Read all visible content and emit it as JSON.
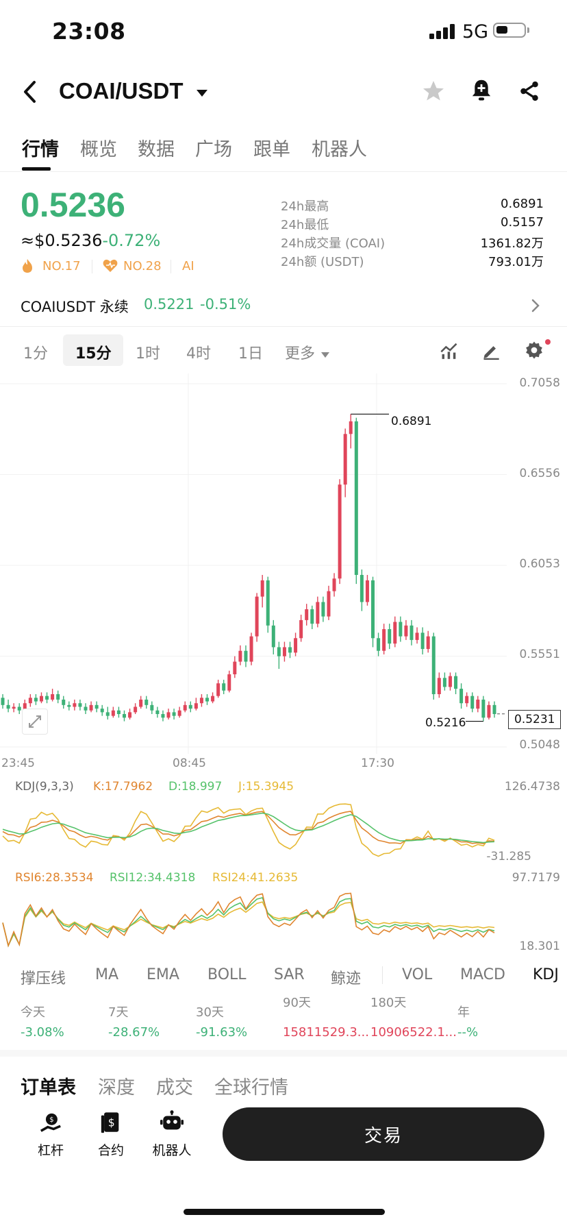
{
  "status_bar": {
    "time": "23:08",
    "network": "5G"
  },
  "header": {
    "pair": "COAI/USDT"
  },
  "tabs": [
    "行情",
    "概览",
    "数据",
    "广场",
    "跟单",
    "机器人"
  ],
  "price": {
    "last": "0.5236",
    "usd": "≈$0.5236",
    "change": "-0.72%",
    "rank1": "NO.17",
    "rank2": "NO.28",
    "tag": "AI"
  },
  "stats": [
    {
      "label": "24h最高",
      "value": "0.6891"
    },
    {
      "label": "24h最低",
      "value": "0.5157"
    },
    {
      "label": "24h成交量 (COAI)",
      "value": "1361.82万"
    },
    {
      "label": "24h额 (USDT)",
      "value": "793.01万"
    }
  ],
  "perpetual": {
    "name": "COAIUSDT 永续",
    "price": "0.5221",
    "change": "-0.51%"
  },
  "timeframes": [
    "1分",
    "15分",
    "1时",
    "4时",
    "1日",
    "更多"
  ],
  "chart_data": {
    "type": "candlestick",
    "y_axis": [
      "0.7058",
      "0.6556",
      "0.6053",
      "0.5551",
      "0.5048"
    ],
    "x_axis": [
      "23:45",
      "08:45",
      "17:30"
    ],
    "high_label": "0.6891",
    "low_label": "0.5216",
    "current_label": "0.5231",
    "ylim": [
      0.5048,
      0.7058
    ],
    "candles": [
      [
        0.532,
        0.528,
        0.534,
        0.526
      ],
      [
        0.528,
        0.526,
        0.531,
        0.524
      ],
      [
        0.526,
        0.527,
        0.529,
        0.524
      ],
      [
        0.527,
        0.525,
        0.529,
        0.523
      ],
      [
        0.525,
        0.529,
        0.531,
        0.524
      ],
      [
        0.529,
        0.532,
        0.534,
        0.527
      ],
      [
        0.532,
        0.53,
        0.534,
        0.528
      ],
      [
        0.53,
        0.533,
        0.535,
        0.529
      ],
      [
        0.533,
        0.531,
        0.535,
        0.529
      ],
      [
        0.531,
        0.534,
        0.537,
        0.53
      ],
      [
        0.534,
        0.531,
        0.536,
        0.529
      ],
      [
        0.531,
        0.528,
        0.533,
        0.526
      ],
      [
        0.528,
        0.527,
        0.53,
        0.525
      ],
      [
        0.527,
        0.529,
        0.531,
        0.525
      ],
      [
        0.529,
        0.527,
        0.531,
        0.525
      ],
      [
        0.527,
        0.525,
        0.529,
        0.523
      ],
      [
        0.525,
        0.528,
        0.53,
        0.524
      ],
      [
        0.528,
        0.526,
        0.53,
        0.524
      ],
      [
        0.526,
        0.524,
        0.528,
        0.522
      ],
      [
        0.524,
        0.522,
        0.527,
        0.52
      ],
      [
        0.522,
        0.525,
        0.527,
        0.521
      ],
      [
        0.525,
        0.523,
        0.527,
        0.521
      ],
      [
        0.523,
        0.521,
        0.525,
        0.519
      ],
      [
        0.521,
        0.524,
        0.526,
        0.52
      ],
      [
        0.524,
        0.527,
        0.529,
        0.523
      ],
      [
        0.527,
        0.531,
        0.533,
        0.526
      ],
      [
        0.531,
        0.528,
        0.533,
        0.526
      ],
      [
        0.528,
        0.525,
        0.53,
        0.523
      ],
      [
        0.525,
        0.523,
        0.527,
        0.521
      ],
      [
        0.523,
        0.521,
        0.525,
        0.519
      ],
      [
        0.521,
        0.524,
        0.526,
        0.52
      ],
      [
        0.524,
        0.522,
        0.526,
        0.52
      ],
      [
        0.522,
        0.525,
        0.527,
        0.521
      ],
      [
        0.525,
        0.528,
        0.53,
        0.524
      ],
      [
        0.528,
        0.526,
        0.53,
        0.524
      ],
      [
        0.526,
        0.529,
        0.532,
        0.525
      ],
      [
        0.529,
        0.532,
        0.534,
        0.527
      ],
      [
        0.532,
        0.53,
        0.534,
        0.528
      ],
      [
        0.53,
        0.533,
        0.535,
        0.529
      ],
      [
        0.533,
        0.54,
        0.542,
        0.532
      ],
      [
        0.54,
        0.536,
        0.542,
        0.534
      ],
      [
        0.536,
        0.545,
        0.547,
        0.535
      ],
      [
        0.545,
        0.552,
        0.555,
        0.543
      ],
      [
        0.552,
        0.558,
        0.561,
        0.55
      ],
      [
        0.558,
        0.552,
        0.561,
        0.549
      ],
      [
        0.552,
        0.566,
        0.568,
        0.55
      ],
      [
        0.566,
        0.588,
        0.59,
        0.563
      ],
      [
        0.588,
        0.597,
        0.6,
        0.582
      ],
      [
        0.597,
        0.572,
        0.599,
        0.568
      ],
      [
        0.572,
        0.56,
        0.575,
        0.556
      ],
      [
        0.56,
        0.555,
        0.563,
        0.548
      ],
      [
        0.555,
        0.56,
        0.563,
        0.552
      ],
      [
        0.56,
        0.557,
        0.563,
        0.554
      ],
      [
        0.557,
        0.565,
        0.568,
        0.555
      ],
      [
        0.565,
        0.575,
        0.578,
        0.563
      ],
      [
        0.575,
        0.581,
        0.584,
        0.572
      ],
      [
        0.581,
        0.573,
        0.583,
        0.57
      ],
      [
        0.573,
        0.585,
        0.588,
        0.571
      ],
      [
        0.585,
        0.577,
        0.588,
        0.574
      ],
      [
        0.577,
        0.591,
        0.594,
        0.575
      ],
      [
        0.591,
        0.598,
        0.601,
        0.588
      ],
      [
        0.598,
        0.65,
        0.653,
        0.595
      ],
      [
        0.65,
        0.678,
        0.681,
        0.643
      ],
      [
        0.678,
        0.685,
        0.689,
        0.67
      ],
      [
        0.685,
        0.6,
        0.687,
        0.595
      ],
      [
        0.6,
        0.585,
        0.603,
        0.58
      ],
      [
        0.585,
        0.597,
        0.6,
        0.583
      ],
      [
        0.597,
        0.565,
        0.599,
        0.56
      ],
      [
        0.565,
        0.558,
        0.568,
        0.555
      ],
      [
        0.558,
        0.57,
        0.573,
        0.556
      ],
      [
        0.57,
        0.562,
        0.573,
        0.559
      ],
      [
        0.562,
        0.574,
        0.577,
        0.56
      ],
      [
        0.574,
        0.566,
        0.577,
        0.563
      ],
      [
        0.566,
        0.572,
        0.575,
        0.564
      ],
      [
        0.572,
        0.564,
        0.575,
        0.561
      ],
      [
        0.564,
        0.568,
        0.571,
        0.562
      ],
      [
        0.568,
        0.559,
        0.571,
        0.556
      ],
      [
        0.559,
        0.566,
        0.569,
        0.557
      ],
      [
        0.566,
        0.534,
        0.568,
        0.531
      ],
      [
        0.534,
        0.543,
        0.546,
        0.532
      ],
      [
        0.543,
        0.538,
        0.546,
        0.536
      ],
      [
        0.538,
        0.544,
        0.546,
        0.536
      ],
      [
        0.544,
        0.537,
        0.546,
        0.534
      ],
      [
        0.537,
        0.529,
        0.54,
        0.526
      ],
      [
        0.529,
        0.533,
        0.535,
        0.527
      ],
      [
        0.533,
        0.526,
        0.535,
        0.524
      ],
      [
        0.526,
        0.531,
        0.533,
        0.524
      ],
      [
        0.531,
        0.521,
        0.533,
        0.519
      ],
      [
        0.521,
        0.528,
        0.53,
        0.52
      ],
      [
        0.528,
        0.523,
        0.53,
        0.521
      ]
    ]
  },
  "kdj": {
    "title": "KDJ(9,3,3)",
    "k": "K:17.7962",
    "d": "D:18.997",
    "j": "J:15.3945",
    "max": "126.4738",
    "min": "-31.285"
  },
  "rsi": {
    "r6": "RSI6:28.3534",
    "r12": "RSI12:34.4318",
    "r24": "RSI24:41.2635",
    "max": "97.7179",
    "min": "18.301"
  },
  "indicators": [
    "撑压线",
    "MA",
    "EMA",
    "BOLL",
    "SAR",
    "鲸迹",
    "VOL",
    "MACD",
    "KDJ"
  ],
  "performance": [
    {
      "label": "今天",
      "value": "-3.08%",
      "color": "green"
    },
    {
      "label": "7天",
      "value": "-28.67%",
      "color": "green"
    },
    {
      "label": "30天",
      "value": "-91.63%",
      "color": "green"
    },
    {
      "label": "90天",
      "value": "15811529.3...",
      "color": "red"
    },
    {
      "label": "180天",
      "value": "10906522.1...",
      "color": "red"
    },
    {
      "label": "年",
      "value": "--%",
      "color": "green"
    }
  ],
  "bottom_tabs": [
    "订单表",
    "深度",
    "成交",
    "全球行情"
  ],
  "actions": [
    "杠杆",
    "合约",
    "机器人"
  ],
  "trade_button": "交易",
  "colors": {
    "up": "#e0455a",
    "down": "#3db177",
    "accent": "#3db177"
  }
}
